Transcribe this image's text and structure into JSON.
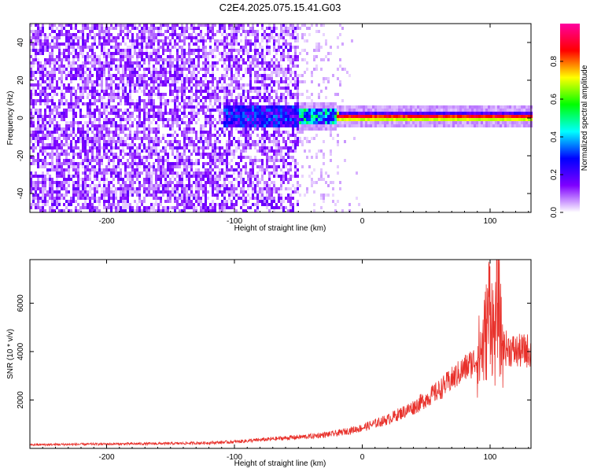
{
  "title": "C2E4.2025.075.15.41.G03",
  "chart_data": [
    {
      "type": "heatmap",
      "xlabel": "Height of straight line (km)",
      "ylabel": "Frequency (Hz)",
      "xlim": [
        -260,
        132
      ],
      "ylim": [
        -50,
        50
      ],
      "xticks": [
        -200,
        -100,
        0,
        100
      ],
      "yticks": [
        -40,
        -20,
        0,
        20,
        40
      ],
      "colorbar": {
        "label": "Normalized spectral amplitude",
        "range": [
          0,
          1
        ],
        "ticks": [
          0.0,
          0.2,
          0.4,
          0.6,
          0.8
        ],
        "tick_labels": [
          "0.0",
          "0.2",
          "0.4",
          "0.6",
          "0.8"
        ],
        "colors": [
          "#ffffff",
          "#7f00ff",
          "#0000ff",
          "#00ffff",
          "#00ff00",
          "#ffff00",
          "#ff0000",
          "#ff00a0"
        ]
      },
      "signal_band": {
        "center_freq_hz": 1.5,
        "onset_height_km": -110,
        "bright_from_km": -20
      }
    },
    {
      "type": "line",
      "xlabel": "Height of straight line (km)",
      "ylabel": "SNR (10 * v/v)",
      "xlim": [
        -260,
        132
      ],
      "ylim": [
        0,
        7800
      ],
      "xticks": [
        -200,
        -100,
        0,
        100
      ],
      "yticks": [
        2000,
        4000,
        6000
      ],
      "color": "#e8302a",
      "series": [
        {
          "envelope_x": [
            -260,
            -200,
            -150,
            -120,
            -100,
            -80,
            -60,
            -40,
            -20,
            0,
            20,
            40,
            60,
            80,
            90,
            95,
            98,
            100,
            102,
            104,
            106,
            108,
            110,
            115,
            120,
            132
          ],
          "envelope_y": [
            150,
            180,
            200,
            230,
            270,
            350,
            430,
            500,
            620,
            850,
            1200,
            1700,
            2400,
            3300,
            3700,
            4300,
            5200,
            6300,
            5000,
            4500,
            6600,
            4800,
            4200,
            4100,
            4000,
            4050
          ]
        }
      ]
    }
  ]
}
